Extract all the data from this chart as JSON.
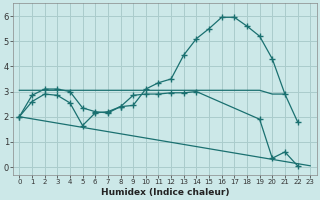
{
  "xlabel": "Humidex (Indice chaleur)",
  "background_color": "#cce8e8",
  "grid_color": "#aacccc",
  "line_color": "#1a7070",
  "xlim": [
    -0.5,
    23.5
  ],
  "ylim": [
    -0.3,
    6.5
  ],
  "x_ticks": [
    0,
    1,
    2,
    3,
    4,
    5,
    6,
    7,
    8,
    9,
    10,
    11,
    12,
    13,
    14,
    15,
    16,
    17,
    18,
    19,
    20,
    21,
    22,
    23
  ],
  "y_ticks": [
    0,
    1,
    2,
    3,
    4,
    5,
    6
  ],
  "series": [
    {
      "x": [
        0,
        1,
        2,
        3,
        4,
        5,
        6,
        7,
        8,
        9,
        10,
        11,
        12,
        13,
        14,
        15,
        16,
        17,
        18,
        19,
        20,
        21,
        22,
        23
      ],
      "y": [
        2.0,
        2.85,
        3.1,
        3.1,
        3.0,
        2.35,
        2.2,
        2.15,
        2.4,
        2.45,
        3.1,
        3.35,
        3.5,
        4.45,
        5.1,
        5.5,
        5.95,
        5.95,
        5.6,
        5.2,
        4.3,
        2.9,
        1.8,
        null
      ],
      "marker": true
    },
    {
      "x": [
        0,
        19,
        20,
        21
      ],
      "y": [
        3.05,
        3.05,
        2.9,
        2.9
      ],
      "marker": false
    },
    {
      "x": [
        0,
        1,
        2,
        3,
        4,
        5,
        6,
        7,
        8,
        9,
        10,
        11,
        12,
        13,
        14,
        19,
        20,
        21,
        22,
        23
      ],
      "y": [
        2.0,
        2.6,
        2.9,
        2.85,
        2.55,
        1.65,
        2.15,
        2.2,
        2.4,
        2.85,
        2.9,
        2.9,
        2.95,
        2.95,
        3.0,
        1.9,
        0.35,
        0.6,
        0.05,
        null
      ],
      "marker": true
    },
    {
      "x": [
        0,
        23
      ],
      "y": [
        2.0,
        0.05
      ],
      "marker": false
    }
  ]
}
